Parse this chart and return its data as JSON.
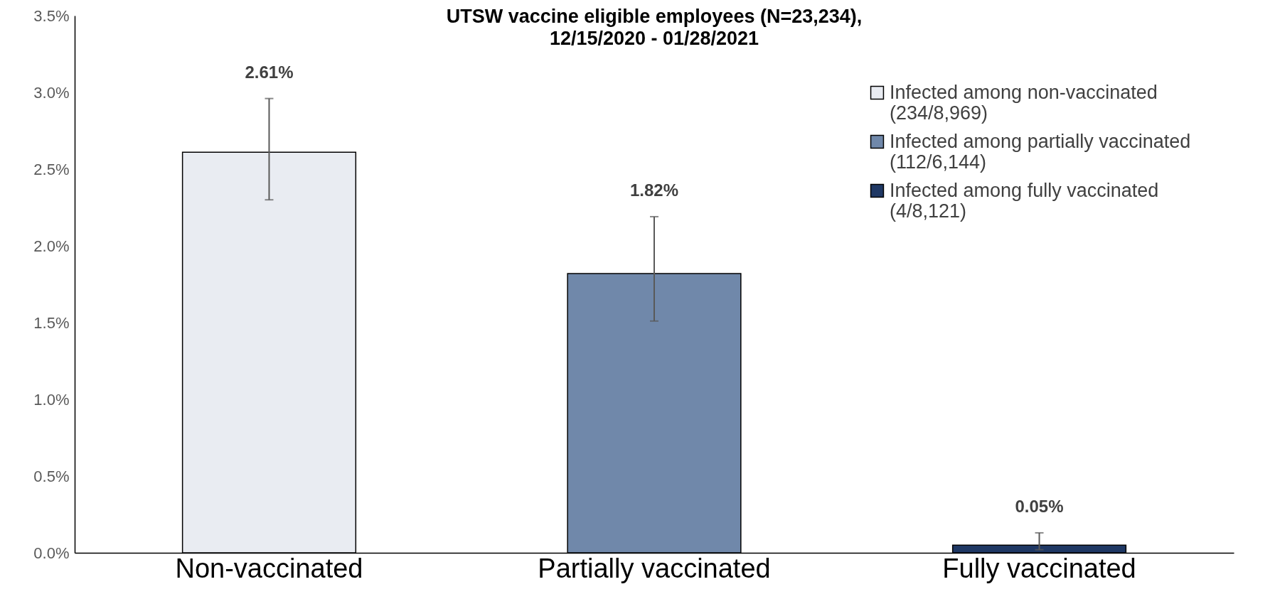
{
  "chart_data": {
    "type": "bar",
    "title": "UTSW vaccine eligible employees (N=23,234),",
    "subtitle": "12/15/2020 - 01/28/2021",
    "categories": [
      "Non-vaccinated",
      "Partially vaccinated",
      "Fully vaccinated"
    ],
    "series": [
      {
        "name": "Infected among non-vaccinated (234/8,969)",
        "color": "#e9ecf2",
        "values": [
          2.61,
          null,
          null
        ],
        "errors": [
          [
            2.3,
            2.96
          ],
          null,
          null
        ]
      },
      {
        "name": "Infected among partially vaccinated (112/6,144)",
        "color": "#7088aa",
        "values": [
          null,
          1.82,
          null
        ],
        "errors": [
          null,
          [
            1.51,
            2.19
          ],
          null
        ]
      },
      {
        "name": "Infected among fully vaccinated (4/8,121)",
        "color": "#1f3864",
        "values": [
          null,
          null,
          0.05
        ],
        "errors": [
          null,
          null,
          [
            0.02,
            0.13
          ]
        ]
      }
    ],
    "ylim": [
      0,
      3.5
    ],
    "yticks": [
      {
        "value": 0,
        "label": "0.0%"
      },
      {
        "value": 0.5,
        "label": "0.5%"
      },
      {
        "value": 1,
        "label": "1.0%"
      },
      {
        "value": 1.5,
        "label": "1.5%"
      },
      {
        "value": 2,
        "label": "2.0%"
      },
      {
        "value": 2.5,
        "label": "2.5%"
      },
      {
        "value": 3,
        "label": "3.0%"
      },
      {
        "value": 3.5,
        "label": "3.5%"
      }
    ],
    "value_labels": [
      "2.61%",
      "1.82%",
      "0.05%"
    ],
    "legend": "top right",
    "grid": false
  }
}
